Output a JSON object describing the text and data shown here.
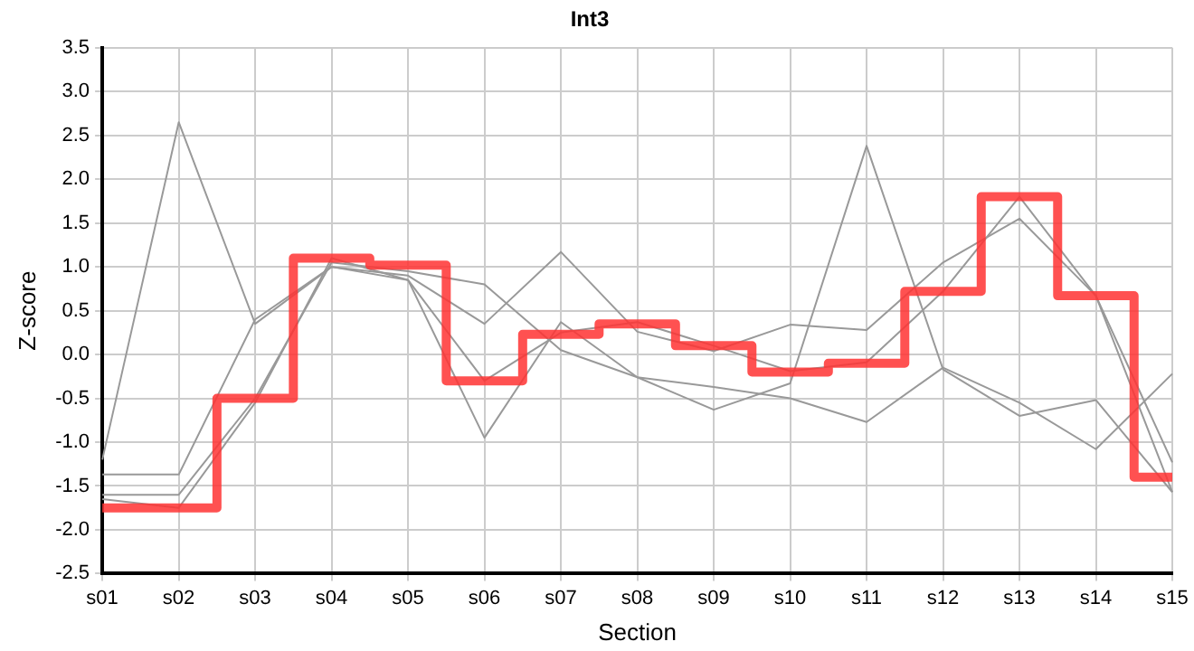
{
  "chart_data": {
    "type": "line",
    "title": "Int3",
    "xlabel": "Section",
    "ylabel": "Z-score",
    "categories": [
      "s01",
      "s02",
      "s03",
      "s04",
      "s05",
      "s06",
      "s07",
      "s08",
      "s09",
      "s10",
      "s11",
      "s12",
      "s13",
      "s14",
      "s15"
    ],
    "series": [
      {
        "color": "#999999",
        "values": [
          -1.2,
          2.65,
          0.35,
          1.0,
          0.85,
          -0.95,
          0.37,
          -0.26,
          -0.63,
          -0.33,
          2.38,
          -0.17,
          -0.7,
          -0.52,
          -1.57
        ]
      },
      {
        "color": "#999999",
        "values": [
          -1.37,
          -1.37,
          0.4,
          1.0,
          0.9,
          0.35,
          1.17,
          0.26,
          0.04,
          0.34,
          0.28,
          1.05,
          1.55,
          0.67,
          -1.23
        ]
      },
      {
        "color": "#999999",
        "values": [
          -1.6,
          -1.6,
          -0.5,
          1.05,
          0.95,
          0.8,
          0.05,
          -0.26,
          -0.37,
          -0.5,
          -0.77,
          -0.15,
          -0.55,
          -1.08,
          -0.22
        ]
      },
      {
        "color": "#999999",
        "values": [
          -1.65,
          -1.75,
          -0.55,
          1.1,
          0.85,
          -0.3,
          0.25,
          0.37,
          0.1,
          -0.19,
          -0.09,
          0.72,
          1.8,
          0.67,
          -1.57
        ]
      },
      {
        "type": "step",
        "color": "#ff3333",
        "values": [
          -1.75,
          -1.75,
          -0.5,
          1.1,
          1.02,
          -0.3,
          0.23,
          0.35,
          0.1,
          -0.2,
          -0.1,
          0.72,
          1.8,
          0.67,
          -1.4
        ]
      }
    ],
    "ylim": [
      -2.5,
      3.5
    ],
    "yticks": [
      {
        "value": -2.5,
        "label": "-2.5"
      },
      {
        "value": -2,
        "label": "-2.0"
      },
      {
        "value": -1.5,
        "label": "-1.5"
      },
      {
        "value": -1,
        "label": "-1.0"
      },
      {
        "value": -0.5,
        "label": "-0.5"
      },
      {
        "value": 0,
        "label": "0.0"
      },
      {
        "value": 0.5,
        "label": "0.5"
      },
      {
        "value": 1,
        "label": "1.0"
      },
      {
        "value": 1.5,
        "label": "1.5"
      },
      {
        "value": 2,
        "label": "2.0"
      },
      {
        "value": 2.5,
        "label": "2.5"
      },
      {
        "value": 3,
        "label": "3.0"
      },
      {
        "value": 3.5,
        "label": "3.5"
      }
    ],
    "grid": true,
    "legend": false,
    "marker": "none",
    "line_style": "solid"
  }
}
